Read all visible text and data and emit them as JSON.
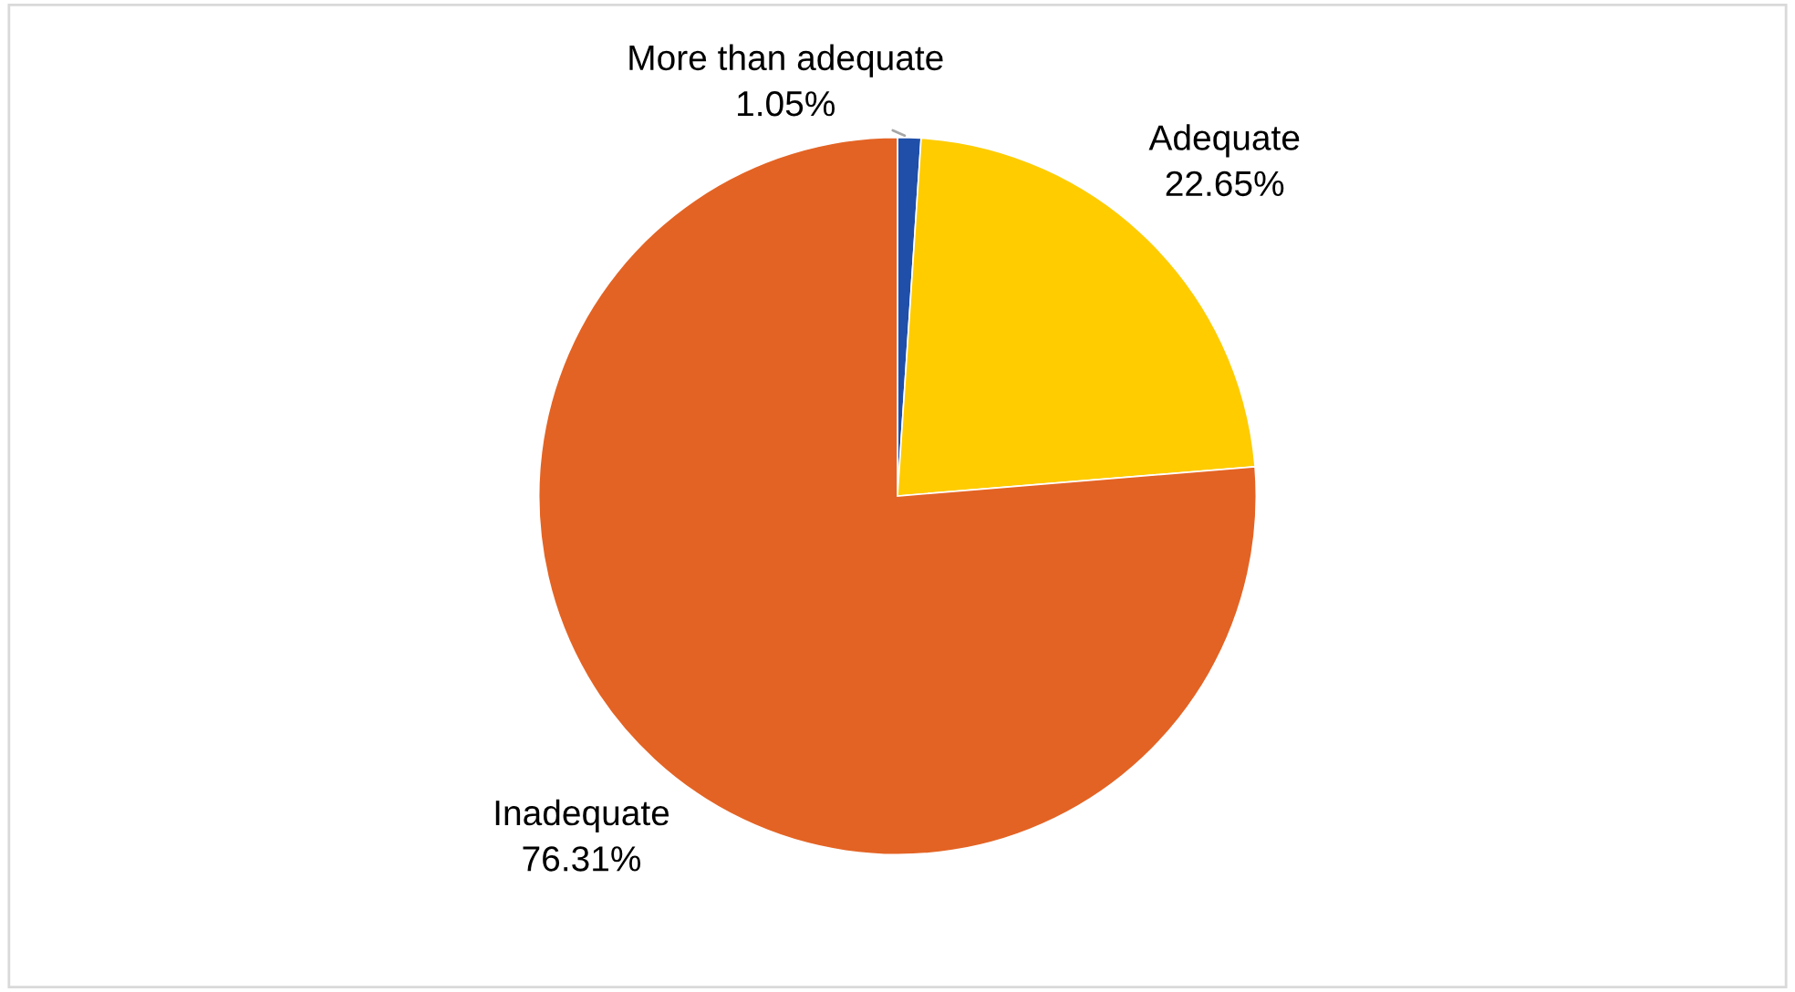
{
  "chart_data": {
    "type": "pie",
    "categories": [
      "More than adequate",
      "Adequate",
      "Inadequate"
    ],
    "values": [
      1.05,
      22.65,
      76.31
    ],
    "value_labels": [
      "1.05%",
      "22.65%",
      "76.31%"
    ],
    "colors": [
      "#1f4fa8",
      "#ffcc00",
      "#e36324"
    ],
    "legend": false
  }
}
